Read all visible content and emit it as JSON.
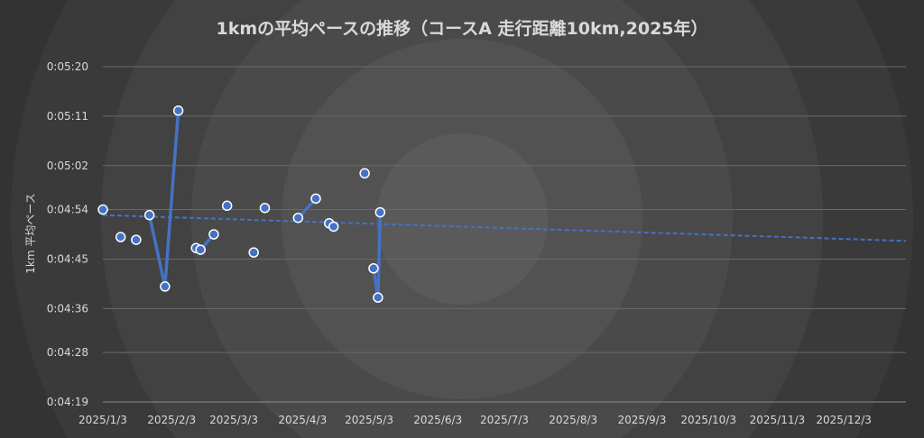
{
  "chart_data": {
    "type": "line",
    "title": "1kmの平均ペースの推移（コースA 走行距離10km,2025年）",
    "ylabel": "1km 平均ペース",
    "xlabel": "",
    "y_unit": "seconds per km (displayed as h:mm:ss)",
    "ylim": [
      259,
      320
    ],
    "y_ticks": [
      "0:04:19",
      "0:04:28",
      "0:04:36",
      "0:04:45",
      "0:04:54",
      "0:05:02",
      "0:05:11",
      "0:05:20"
    ],
    "xlim": [
      "2025-01-03",
      "2025-12-31"
    ],
    "x_ticks": [
      "2025/1/3",
      "2025/2/3",
      "2025/3/3",
      "2025/4/3",
      "2025/5/3",
      "2025/6/3",
      "2025/7/3",
      "2025/8/3",
      "2025/9/3",
      "2025/10/3",
      "2025/11/3",
      "2025/12/3"
    ],
    "series": [
      {
        "color": "#4472c4",
        "points": [
          {
            "x": "2025-01-03",
            "y": 294
          },
          {
            "x": "2025-01-11",
            "y": 289
          },
          {
            "x": "2025-01-18",
            "y": 288.5
          },
          {
            "x": "2025-01-24",
            "y": 293
          },
          {
            "x": "2025-01-31",
            "y": 280
          },
          {
            "x": "2025-02-06",
            "y": 312
          },
          {
            "x": "2025-02-14",
            "y": 287
          },
          {
            "x": "2025-02-16",
            "y": 286.7
          },
          {
            "x": "2025-02-22",
            "y": 289.5
          },
          {
            "x": "2025-02-28",
            "y": 294.7
          },
          {
            "x": "2025-03-12",
            "y": 286.2
          },
          {
            "x": "2025-03-17",
            "y": 294.3
          },
          {
            "x": "2025-04-01",
            "y": 292.5
          },
          {
            "x": "2025-04-09",
            "y": 296
          },
          {
            "x": "2025-04-15",
            "y": 291.5
          },
          {
            "x": "2025-04-17",
            "y": 290.9
          },
          {
            "x": "2025-05-01",
            "y": 300.6
          },
          {
            "x": "2025-05-05",
            "y": 283.3
          },
          {
            "x": "2025-05-07",
            "y": 278
          },
          {
            "x": "2025-05-08",
            "y": 293.5
          }
        ],
        "segments": [
          [
            3,
            5
          ],
          [
            6,
            8
          ],
          [
            12,
            13
          ],
          [
            14,
            15
          ],
          [
            17,
            19
          ]
        ]
      }
    ],
    "trendline": {
      "type": "linear",
      "style": "dashed",
      "color": "#4472c4",
      "start": {
        "x": "2025-01-03",
        "y": 293
      },
      "end": {
        "x": "2025-12-31",
        "y": 288.3
      }
    },
    "grid": true,
    "legend": "none"
  }
}
